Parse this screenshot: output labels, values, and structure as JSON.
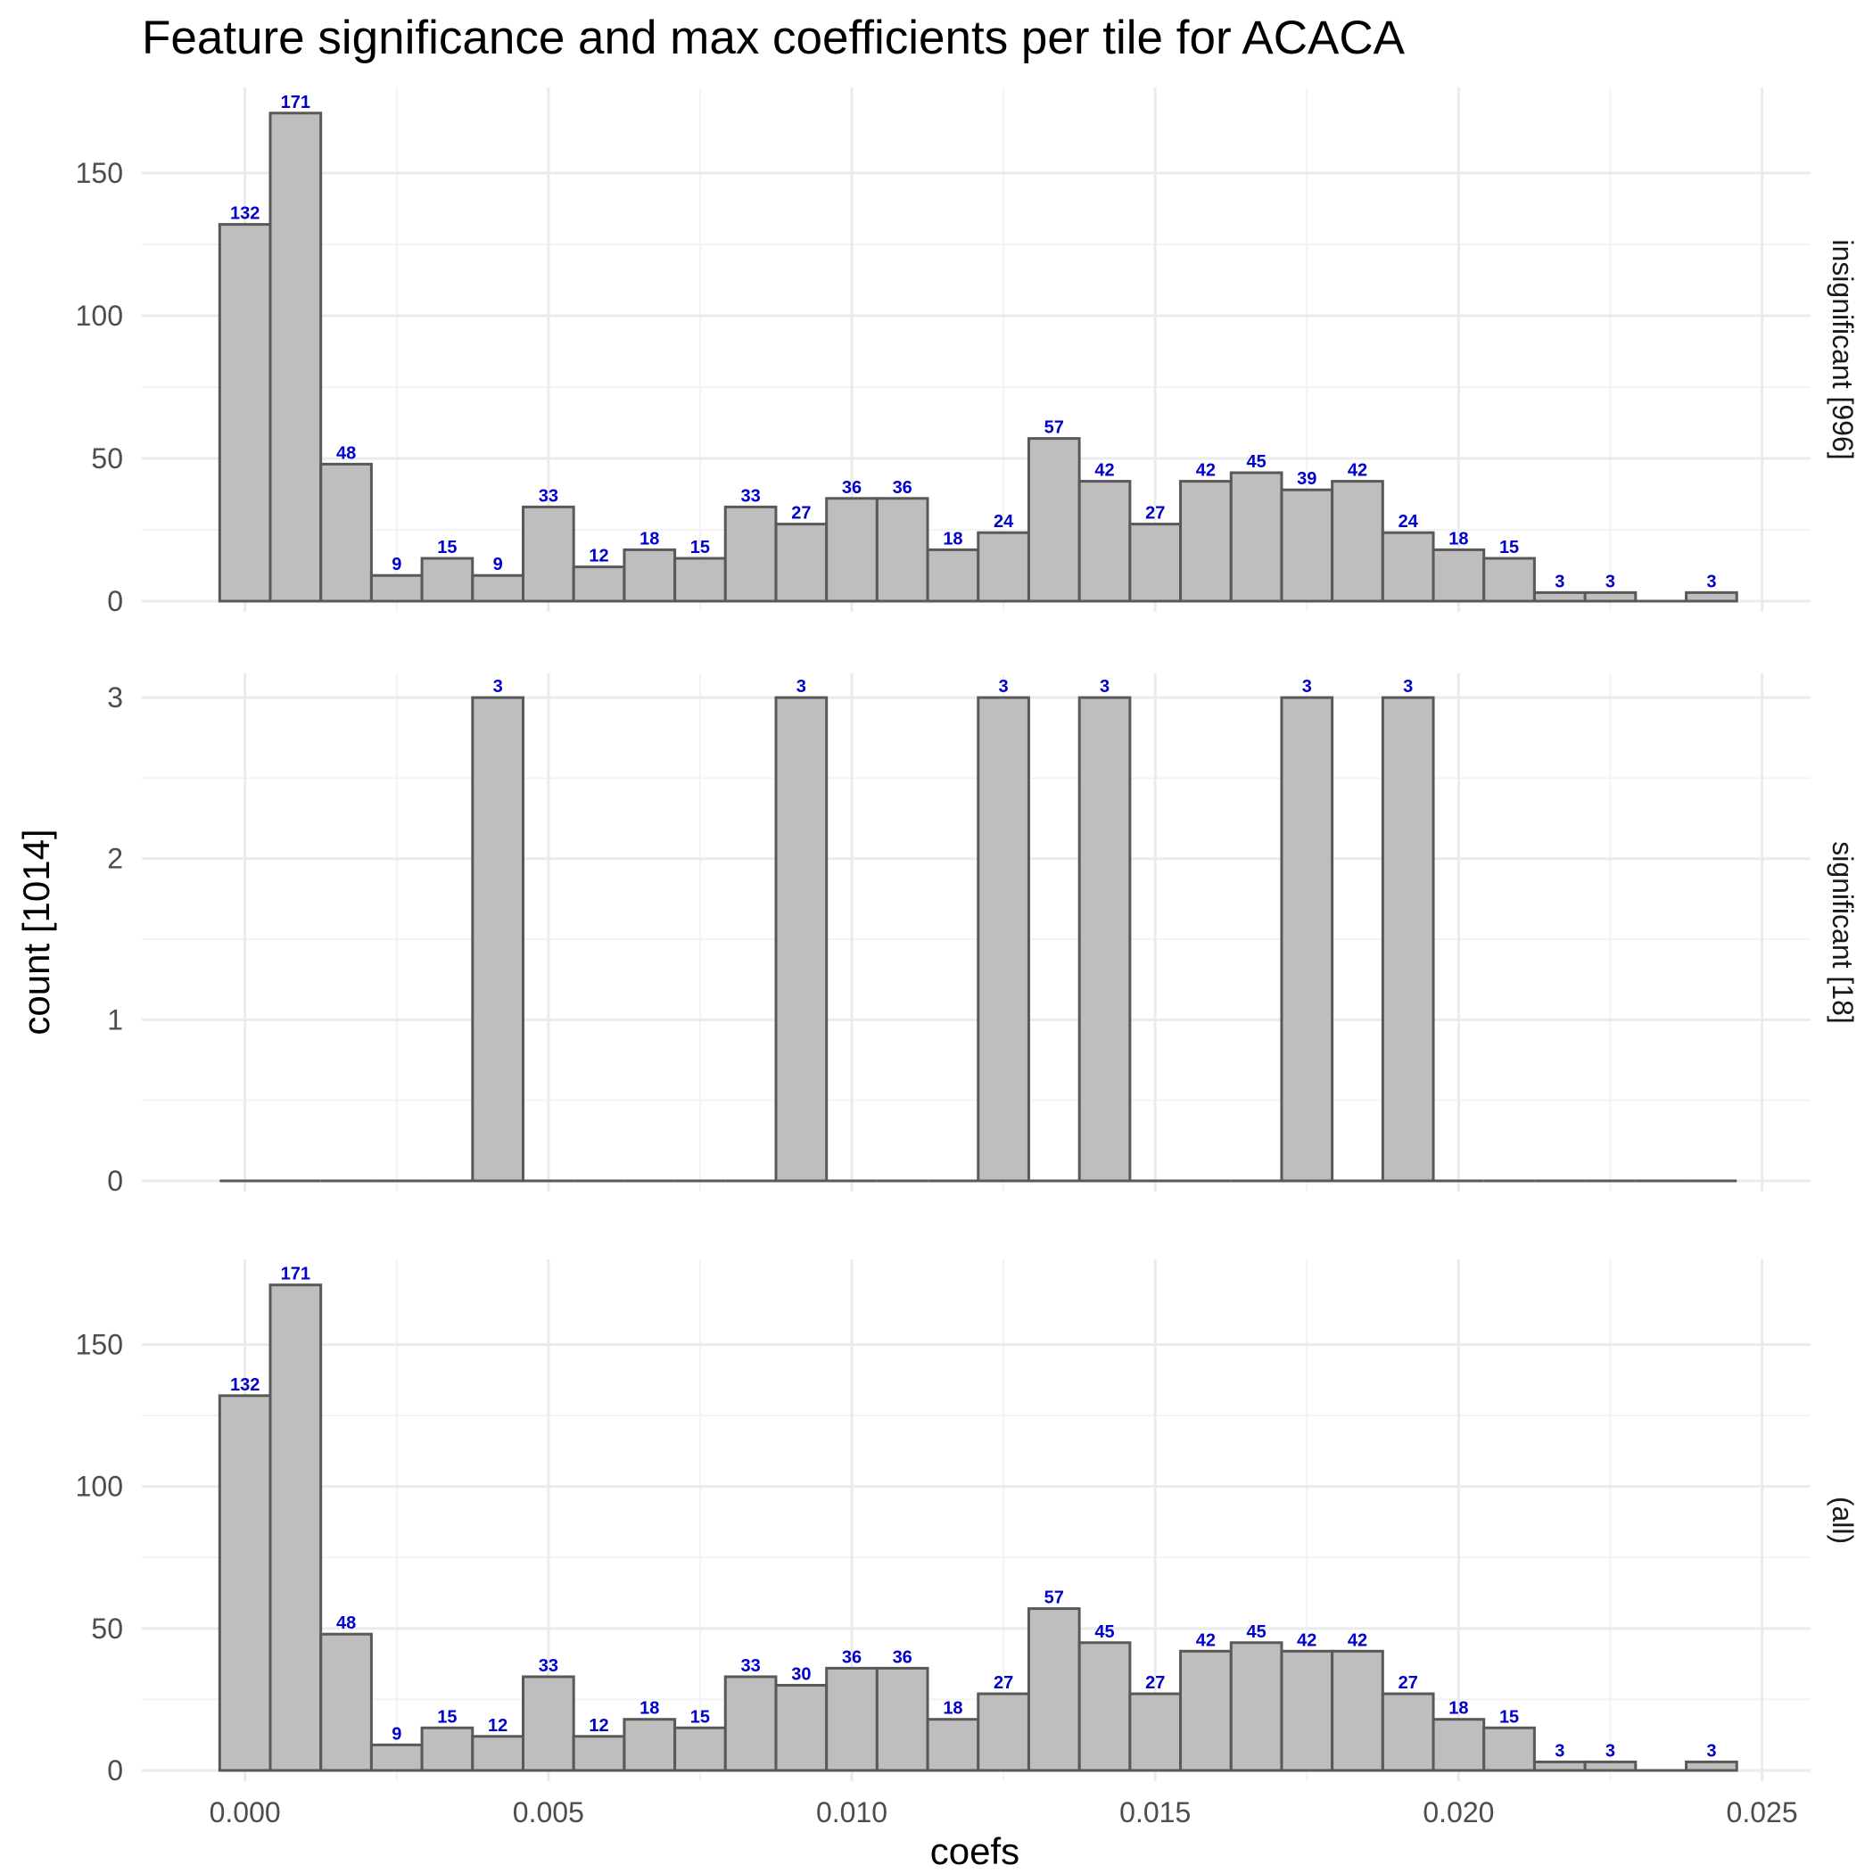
{
  "chart_data": {
    "type": "bar",
    "title": "Feature significance and max coefficients per tile for ACACA",
    "xlabel": "coefs",
    "ylabel": "count [1014]",
    "xlim": [
      -0.0017,
      0.0258
    ],
    "x_ticks": [
      0.0,
      0.005,
      0.01,
      0.015,
      0.02,
      0.025
    ],
    "x_tick_labels": [
      "0.000",
      "0.005",
      "0.010",
      "0.015",
      "0.020",
      "0.025"
    ],
    "bin_width": 0.000833,
    "bin_centers": [
      0.0,
      0.000833,
      0.001667,
      0.0025,
      0.003333,
      0.004167,
      0.005,
      0.005833,
      0.006667,
      0.0075,
      0.008333,
      0.009167,
      0.01,
      0.010833,
      0.011667,
      0.0125,
      0.013333,
      0.014167,
      0.015,
      0.015833,
      0.016667,
      0.0175,
      0.018333,
      0.019167,
      0.02,
      0.020833,
      0.021667,
      0.0225,
      0.023333,
      0.024167
    ],
    "grid": true,
    "facets": [
      {
        "label": "insignificant [996]",
        "ylim": [
          0,
          180
        ],
        "y_ticks": [
          0,
          50,
          100,
          150
        ],
        "y_tick_labels": [
          "0",
          "50",
          "100",
          "150"
        ],
        "values": [
          132,
          171,
          48,
          9,
          15,
          9,
          33,
          12,
          18,
          15,
          33,
          27,
          36,
          36,
          18,
          24,
          57,
          42,
          27,
          42,
          45,
          39,
          42,
          24,
          18,
          15,
          3,
          3,
          0,
          3
        ]
      },
      {
        "label": "significant [18]",
        "ylim": [
          0,
          3.15
        ],
        "y_ticks": [
          0,
          1,
          2,
          3
        ],
        "y_tick_labels": [
          "0",
          "1",
          "2",
          "3"
        ],
        "values": [
          0,
          0,
          0,
          0,
          0,
          3,
          0,
          0,
          0,
          0,
          0,
          3,
          0,
          0,
          0,
          3,
          0,
          3,
          0,
          0,
          0,
          3,
          0,
          3,
          0,
          0,
          0,
          0,
          0,
          0
        ]
      },
      {
        "label": "(all)",
        "ylim": [
          0,
          180
        ],
        "y_ticks": [
          0,
          50,
          100,
          150
        ],
        "y_tick_labels": [
          "0",
          "50",
          "100",
          "150"
        ],
        "values": [
          132,
          171,
          48,
          9,
          15,
          12,
          33,
          12,
          18,
          15,
          33,
          30,
          36,
          36,
          18,
          27,
          57,
          45,
          27,
          42,
          45,
          42,
          42,
          27,
          18,
          15,
          3,
          3,
          0,
          3
        ]
      }
    ],
    "colors": {
      "bar_fill": "#bebebe",
      "bar_stroke": "#595959",
      "label": "#0000cc",
      "grid_major": "#ebebeb",
      "grid_minor": "#f3f3f3"
    }
  }
}
